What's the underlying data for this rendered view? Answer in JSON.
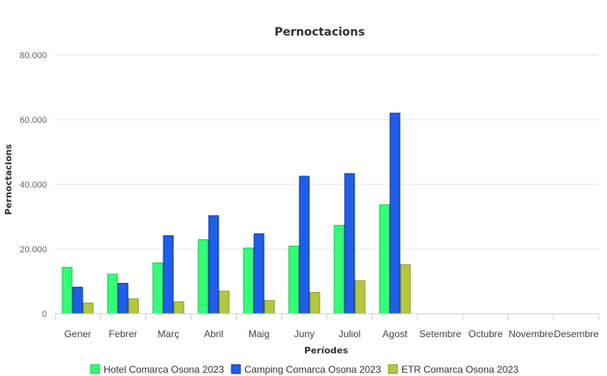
{
  "chart_data": {
    "type": "bar",
    "title": "Pernoctacions",
    "xlabel": "Períodes",
    "ylabel": "Pernoctacions",
    "ylim": [
      0,
      80000
    ],
    "yticks": [
      0,
      20000,
      40000,
      60000,
      80000
    ],
    "ytick_labels": [
      "0",
      "20.000",
      "40.000",
      "60.000",
      "80.000"
    ],
    "categories": [
      "Gener",
      "Febrer",
      "Març",
      "Abril",
      "Maig",
      "Juny",
      "Juliol",
      "Agost",
      "Setembre",
      "Octubre",
      "Novembre",
      "Desembre"
    ],
    "grid": true,
    "legend_position": "bottom",
    "series": [
      {
        "name": "Hotel Comarca Osona 2023",
        "color": "#33ff77",
        "border": "#22bb55",
        "values": [
          14300,
          12200,
          15700,
          22900,
          20300,
          20900,
          27300,
          33700,
          null,
          null,
          null,
          null
        ]
      },
      {
        "name": "Camping Comarca Osona 2023",
        "color": "#1f5fe8",
        "border": "#0a2f9e",
        "values": [
          8200,
          9400,
          24100,
          30300,
          24700,
          42500,
          43300,
          62000,
          null,
          null,
          null,
          null
        ]
      },
      {
        "name": "ETR Comarca Osona 2023",
        "color": "#b5c63f",
        "border": "#8a9a2a",
        "values": [
          3300,
          4600,
          3700,
          7000,
          4100,
          6600,
          10200,
          15200,
          null,
          null,
          null,
          null
        ]
      }
    ]
  }
}
